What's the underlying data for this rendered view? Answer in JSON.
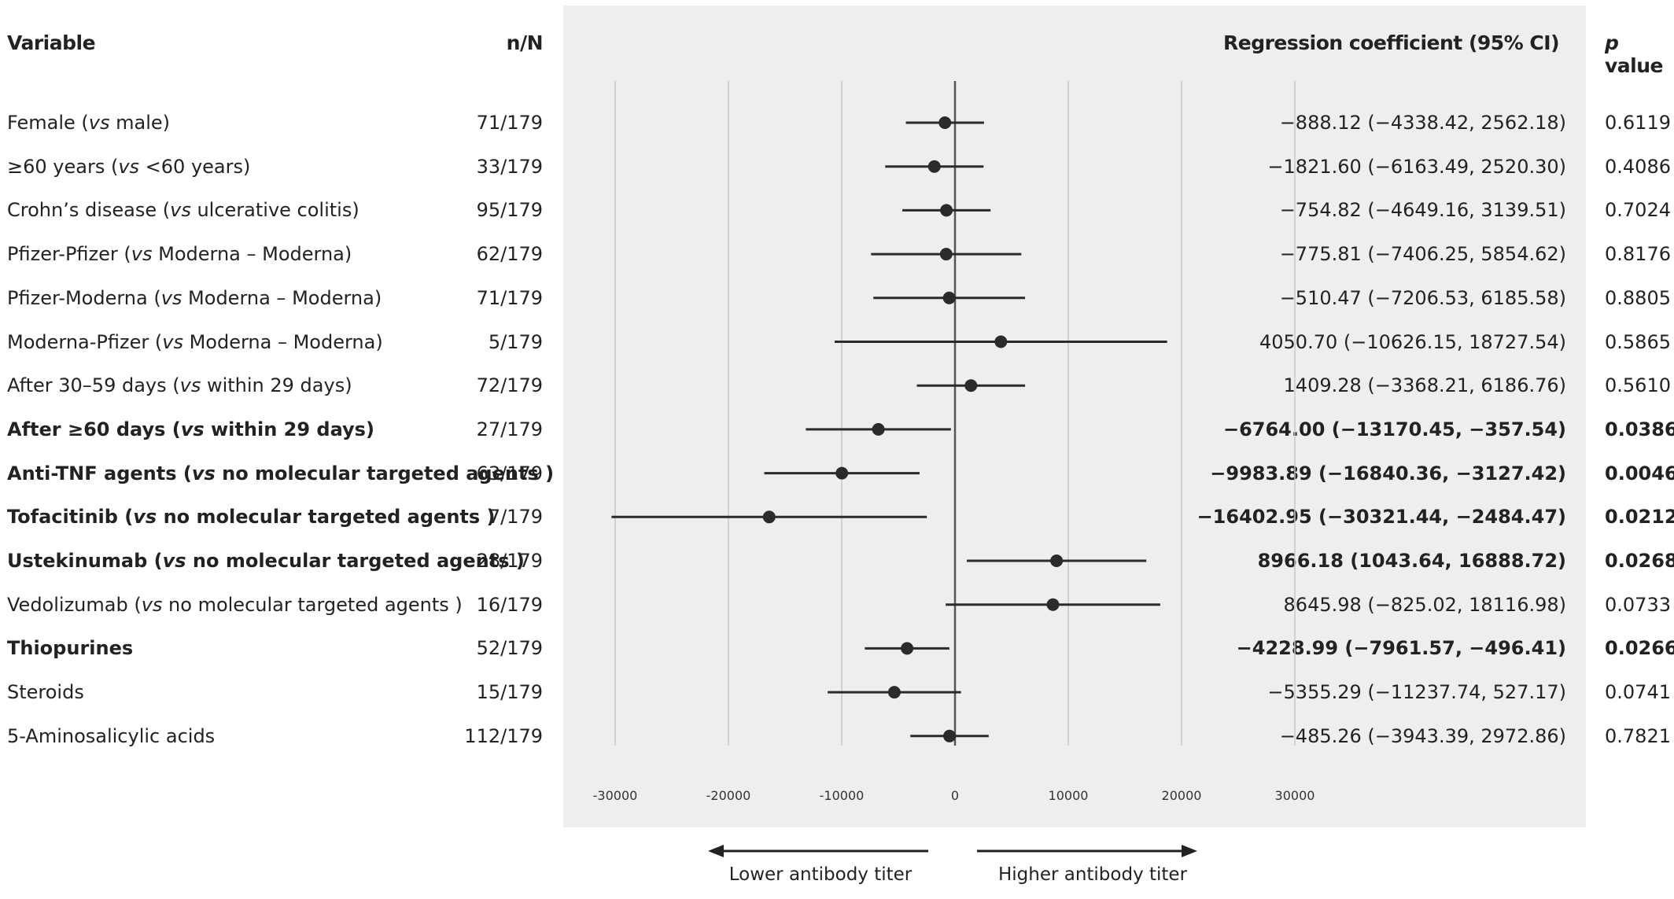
{
  "headers": {
    "variable": "Variable",
    "nn": "n/N",
    "coef": "Regression coefficient (95% CI)",
    "p_prefix": "p",
    "p_suffix": " value"
  },
  "chart_data": {
    "type": "forest",
    "xlim": [
      -30000,
      30000
    ],
    "xticks": [
      -30000,
      -20000,
      -10000,
      0,
      10000,
      20000,
      30000
    ],
    "xtick_labels": [
      "-30000",
      "-20000",
      "-10000",
      "0",
      "10000",
      "20000",
      "30000"
    ],
    "reference_line": 0,
    "grid": true,
    "direction_labels": {
      "left": "Lower antibody titer",
      "right": "Higher antibody titer"
    },
    "rows": [
      {
        "pre": "Female (",
        "vs": "vs",
        "post": " male)",
        "n": "71/179",
        "est": -888.12,
        "lo": -4338.42,
        "hi": 2562.18,
        "coef_text": "−888.12 (−4338.42, 2562.18)",
        "p": "0.6119",
        "bold": false
      },
      {
        "pre": "≥60 years (",
        "vs": "vs",
        "post": " <60 years)",
        "n": "33/179",
        "est": -1821.6,
        "lo": -6163.49,
        "hi": 2520.3,
        "coef_text": "−1821.60 (−6163.49, 2520.30)",
        "p": "0.4086",
        "bold": false
      },
      {
        "pre": "Crohn’s disease (",
        "vs": "vs",
        "post": " ulcerative colitis)",
        "n": "95/179",
        "est": -754.82,
        "lo": -4649.16,
        "hi": 3139.51,
        "coef_text": "−754.82 (−4649.16, 3139.51)",
        "p": "0.7024",
        "bold": false
      },
      {
        "pre": "Pfizer-Pfizer (",
        "vs": "vs",
        "post": " Moderna – Moderna)",
        "n": "62/179",
        "est": -775.81,
        "lo": -7406.25,
        "hi": 5854.62,
        "coef_text": "−775.81 (−7406.25, 5854.62)",
        "p": "0.8176",
        "bold": false
      },
      {
        "pre": "Pfizer-Moderna (",
        "vs": "vs",
        "post": " Moderna – Moderna)",
        "n": "71/179",
        "est": -510.47,
        "lo": -7206.53,
        "hi": 6185.58,
        "coef_text": "−510.47 (−7206.53, 6185.58)",
        "p": "0.8805",
        "bold": false
      },
      {
        "pre": "Moderna-Pfizer (",
        "vs": "vs",
        "post": " Moderna – Moderna)",
        "n": "5/179",
        "est": 4050.7,
        "lo": -10626.15,
        "hi": 18727.54,
        "coef_text": "4050.70 (−10626.15, 18727.54)",
        "p": "0.5865",
        "bold": false
      },
      {
        "pre": "After 30–59 days (",
        "vs": "vs",
        "post": " within 29 days)",
        "n": "72/179",
        "est": 1409.28,
        "lo": -3368.21,
        "hi": 6186.76,
        "coef_text": "1409.28 (−3368.21, 6186.76)",
        "p": "0.5610",
        "bold": false
      },
      {
        "pre": "After ≥60 days (",
        "vs": "vs",
        "post": " within 29 days)",
        "n": "27/179",
        "est": -6764.0,
        "lo": -13170.45,
        "hi": -357.54,
        "coef_text": "−6764.00 (−13170.45, −357.54)",
        "p": "0.0386",
        "bold": true
      },
      {
        "pre": "Anti-TNF agents (",
        "vs": "vs",
        "post": " no molecular targeted agents )",
        "n": "63/179",
        "est": -9983.89,
        "lo": -16840.36,
        "hi": -3127.42,
        "coef_text": "−9983.89 (−16840.36, −3127.42)",
        "p": "0.0046",
        "bold": true
      },
      {
        "pre": "Tofacitinib (",
        "vs": "vs",
        "post": " no molecular targeted agents )",
        "n": "7/179",
        "est": -16402.95,
        "lo": -30321.44,
        "hi": -2484.47,
        "coef_text": "−16402.95 (−30321.44, −2484.47)",
        "p": "0.0212",
        "bold": true
      },
      {
        "pre": "Ustekinumab (",
        "vs": "vs",
        "post": " no molecular targeted agents )",
        "n": "28/179",
        "est": 8966.18,
        "lo": 1043.64,
        "hi": 16888.72,
        "coef_text": "8966.18 (1043.64, 16888.72)",
        "p": "0.0268",
        "bold": true
      },
      {
        "pre": "Vedolizumab (",
        "vs": "vs",
        "post": " no molecular targeted agents )",
        "n": "16/179",
        "est": 8645.98,
        "lo": -825.02,
        "hi": 18116.98,
        "coef_text": "8645.98 (−825.02, 18116.98)",
        "p": "0.0733",
        "bold": false
      },
      {
        "pre": "Thiopurines",
        "vs": "",
        "post": "",
        "n": "52/179",
        "est": -4228.99,
        "lo": -7961.57,
        "hi": -496.41,
        "coef_text": "−4228.99 (−7961.57, −496.41)",
        "p": "0.0266",
        "bold": true
      },
      {
        "pre": "Steroids",
        "vs": "",
        "post": "",
        "n": "15/179",
        "est": -5355.29,
        "lo": -11237.74,
        "hi": 527.17,
        "coef_text": "−5355.29 (−11237.74, 527.17)",
        "p": "0.0741",
        "bold": false
      },
      {
        "pre": "5-Aminosalicylic acids",
        "vs": "",
        "post": "",
        "n": "112/179",
        "est": -485.26,
        "lo": -3943.39,
        "hi": 2972.86,
        "coef_text": "−485.26 (−3943.39, 2972.86)",
        "p": "0.7821",
        "bold": false
      }
    ]
  }
}
